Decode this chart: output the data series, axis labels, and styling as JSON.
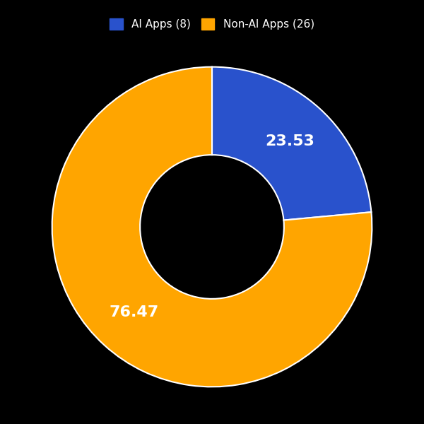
{
  "labels": [
    "AI Apps (8)",
    "Non-AI Apps (26)"
  ],
  "values": [
    23.53,
    76.47
  ],
  "colors": [
    "#2952CC",
    "#FFA500"
  ],
  "text_values": [
    "23.53",
    "76.47"
  ],
  "background_color": "#000000",
  "wedge_edge_color": "white",
  "legend_fontsize": 11,
  "label_fontsize": 16,
  "label_color": "white",
  "figsize": [
    6.0,
    6.0
  ],
  "dpi": 100,
  "donut_width": 0.55,
  "startangle": 90
}
